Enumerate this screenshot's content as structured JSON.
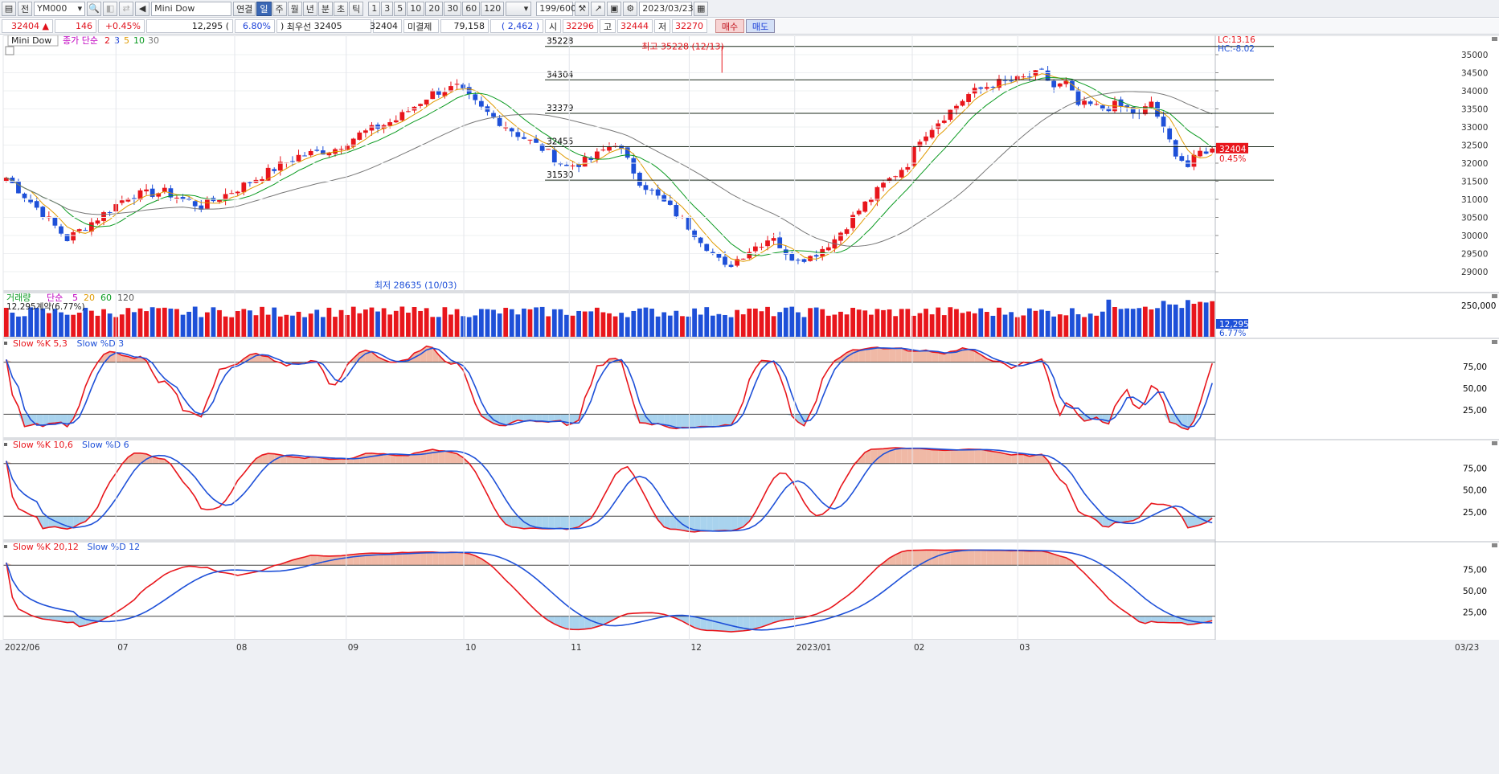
{
  "toolbar": {
    "market": "전",
    "symbol": "YM000",
    "product_name": "Mini Dow",
    "periods": [
      "연결",
      "일",
      "주",
      "월",
      "년",
      "분",
      "초",
      "틱"
    ],
    "active_period": "일",
    "intervals": [
      "1",
      "3",
      "5",
      "10",
      "20",
      "30",
      "60",
      "120"
    ],
    "count": "199",
    "count_max": "/600",
    "date": "2023/03/23"
  },
  "quote": {
    "price": "32404",
    "arrow": "▲",
    "change": "146",
    "change_pct": "+0.45%",
    "volume": "12,295",
    "vol_pct_open": "(",
    "vol_pct": "6.80%",
    "vol_pct_close": ")",
    "front_month_label": "최우선",
    "front_month_value": "32405",
    "last": "32404",
    "open_int_label": "미결제",
    "open_int": "79,158",
    "open_int_chg_open": "(",
    "open_int_chg": "2,462",
    "open_int_chg_close": ")",
    "open_label": "시",
    "open": "32296",
    "high_label": "고",
    "high": "32444",
    "low_label": "저",
    "low": "32270",
    "buy_label": "매수",
    "sell_label": "매도"
  },
  "price_panel": {
    "title": "Mini Dow",
    "ma_label": "종가 단순",
    "ma_periods": [
      "2",
      "3",
      "5",
      "10",
      "30"
    ],
    "high_note": "최고 35228 (12/13)",
    "low_note": "최저 28635 (10/03)",
    "lc": "LC:13.16",
    "hc": "HC:-8.02",
    "last_price": "32404",
    "last_pct": "0.45%",
    "hlines": [
      "35228",
      "34304",
      "33379",
      "32455",
      "31530"
    ],
    "yticks": [
      "35000",
      "34500",
      "34000",
      "33500",
      "33000",
      "32500",
      "32000",
      "31500",
      "31000",
      "30500",
      "30000",
      "29500",
      "29000"
    ]
  },
  "volume_panel": {
    "label": "거래량",
    "ma_label": "단순",
    "ma_periods": [
      "5",
      "20",
      "60",
      "120"
    ],
    "note": "12,295계약(6.77%)",
    "ytick": "250,000",
    "last": "12,295",
    "last_pct": "6.77%"
  },
  "stoch_panels": [
    {
      "k": "Slow %K 5,3",
      "d": "Slow %D 3"
    },
    {
      "k": "Slow %K 10,6",
      "d": "Slow %D 6"
    },
    {
      "k": "Slow %K 20,12",
      "d": "Slow %D 12"
    }
  ],
  "stoch_ticks": [
    "75,00",
    "50,00",
    "25,00"
  ],
  "xaxis": [
    "2022/06",
    "07",
    "08",
    "09",
    "10",
    "11",
    "12",
    "2023/01",
    "02",
    "03",
    "03/23"
  ],
  "colors": {
    "up": "#e8161c",
    "down": "#1e50d8",
    "ma2": "#e0101a",
    "ma3": "#1a3fd8",
    "ma5": "#e09a00",
    "ma10": "#0a9a20",
    "ma30": "#777777",
    "over": "#f0b9a6",
    "under": "#a9d3ee"
  }
}
